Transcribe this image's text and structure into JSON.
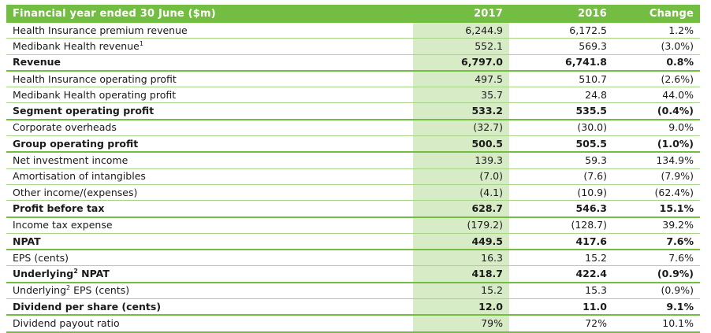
{
  "header": {
    "label": "Financial year ended 30 June ($m)",
    "col_2017": "2017",
    "col_2016": "2016",
    "col_change": "Change"
  },
  "rows": [
    {
      "label": "Health Insurance premium revenue",
      "sup": "",
      "label_suffix": "",
      "v2017": "6,244.9",
      "v2016": "6,172.5",
      "change": "1.2%",
      "bold": false
    },
    {
      "label": "Medibank Health revenue",
      "sup": "1",
      "label_suffix": "",
      "v2017": "552.1",
      "v2016": "569.3",
      "change": "(3.0%)",
      "bold": false
    },
    {
      "label": "Revenue",
      "sup": "",
      "label_suffix": "",
      "v2017": "6,797.0",
      "v2016": "6,741.8",
      "change": "0.8%",
      "bold": true
    },
    {
      "label": "Health Insurance operating profit",
      "sup": "",
      "label_suffix": "",
      "v2017": "497.5",
      "v2016": "510.7",
      "change": "(2.6%)",
      "bold": false
    },
    {
      "label": "Medibank Health operating profit",
      "sup": "",
      "label_suffix": "",
      "v2017": "35.7",
      "v2016": "24.8",
      "change": "44.0%",
      "bold": false
    },
    {
      "label": "Segment operating profit",
      "sup": "",
      "label_suffix": "",
      "v2017": "533.2",
      "v2016": "535.5",
      "change": "(0.4%)",
      "bold": true
    },
    {
      "label": "Corporate overheads",
      "sup": "",
      "label_suffix": "",
      "v2017": "(32.7)",
      "v2016": "(30.0)",
      "change": "9.0%",
      "bold": false
    },
    {
      "label": "Group operating profit",
      "sup": "",
      "label_suffix": "",
      "v2017": "500.5",
      "v2016": "505.5",
      "change": "(1.0%)",
      "bold": true
    },
    {
      "label": "Net investment income",
      "sup": "",
      "label_suffix": "",
      "v2017": "139.3",
      "v2016": "59.3",
      "change": "134.9%",
      "bold": false
    },
    {
      "label": "Amortisation of intangibles",
      "sup": "",
      "label_suffix": "",
      "v2017": "(7.0)",
      "v2016": "(7.6)",
      "change": "(7.9%)",
      "bold": false
    },
    {
      "label": "Other income/(expenses)",
      "sup": "",
      "label_suffix": "",
      "v2017": "(4.1)",
      "v2016": "(10.9)",
      "change": "(62.4%)",
      "bold": false
    },
    {
      "label": "Profit before tax",
      "sup": "",
      "label_suffix": "",
      "v2017": "628.7",
      "v2016": "546.3",
      "change": "15.1%",
      "bold": true
    },
    {
      "label": "Income tax expense",
      "sup": "",
      "label_suffix": "",
      "v2017": "(179.2)",
      "v2016": "(128.7)",
      "change": "39.2%",
      "bold": false
    },
    {
      "label": "NPAT",
      "sup": "",
      "label_suffix": "",
      "v2017": "449.5",
      "v2016": "417.6",
      "change": "7.6%",
      "bold": true
    },
    {
      "label": "EPS (cents)",
      "sup": "",
      "label_suffix": "",
      "v2017": "16.3",
      "v2016": "15.2",
      "change": "7.6%",
      "bold": false
    },
    {
      "label": "Underlying",
      "sup": "2",
      "label_suffix": " NPAT",
      "v2017": "418.7",
      "v2016": "422.4",
      "change": "(0.9%)",
      "bold": true
    },
    {
      "label": "Underlying",
      "sup": "2",
      "label_suffix": " EPS (cents)",
      "v2017": "15.2",
      "v2016": "15.3",
      "change": "(0.9%)",
      "bold": false
    },
    {
      "label": "Dividend per share (cents)",
      "sup": "",
      "label_suffix": "",
      "v2017": "12.0",
      "v2016": "11.0",
      "change": "9.1%",
      "bold": true
    },
    {
      "label": "Dividend payout ratio",
      "sup": "",
      "label_suffix": "",
      "v2017": "79%",
      "v2016": "72%",
      "change": "10.1%",
      "bold": false
    }
  ],
  "colors": {
    "header_bg": "#74bd43",
    "highlight_col": "#d6ebc6",
    "rule": "#a8d48a"
  }
}
